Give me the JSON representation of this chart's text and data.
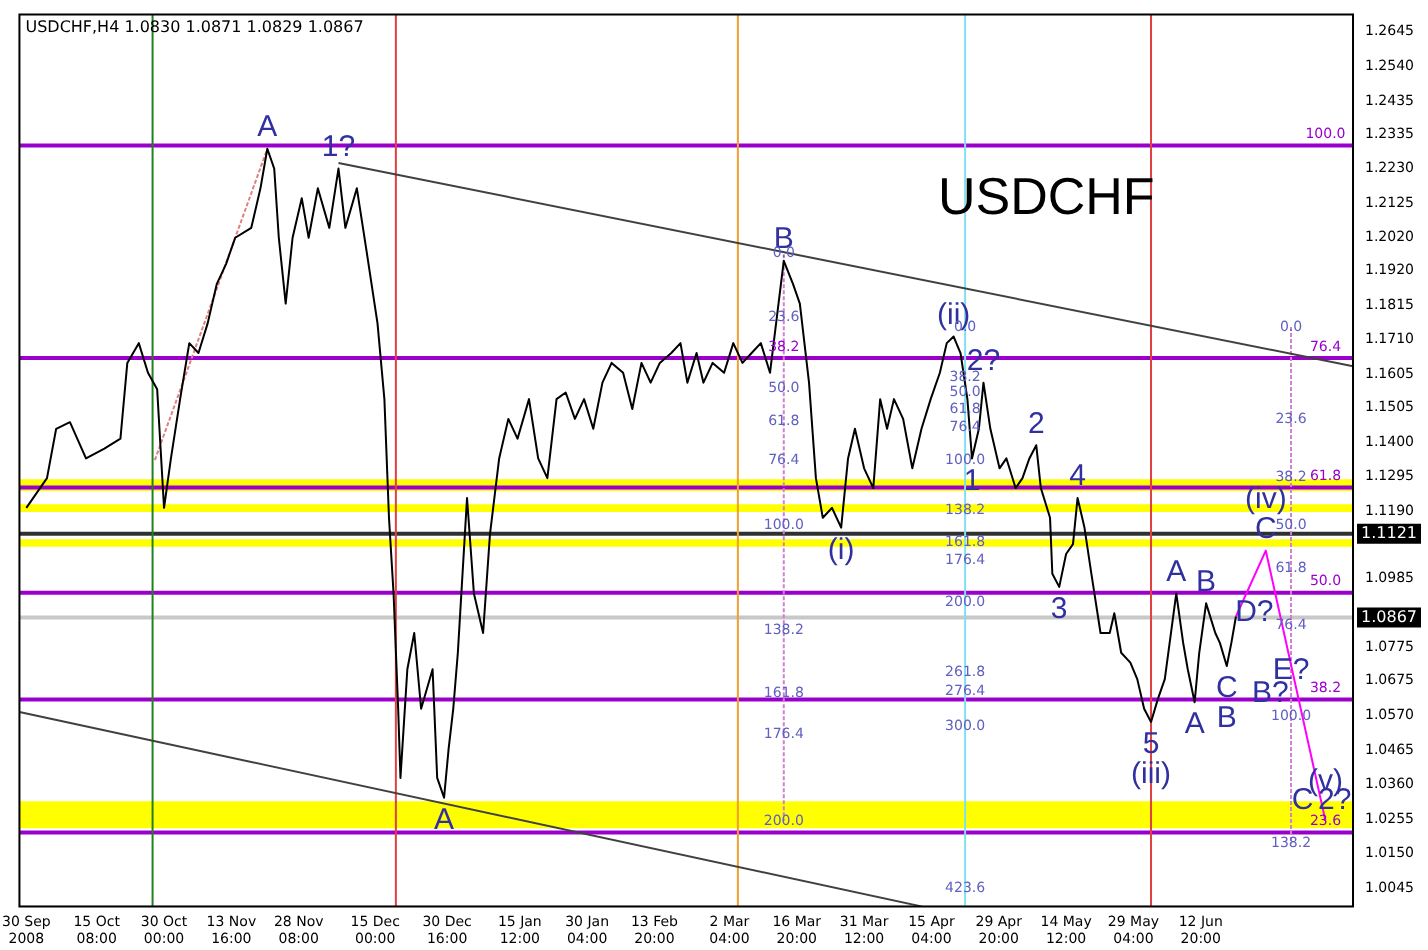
{
  "chart_data": {
    "type": "line",
    "title": "USDCHF,H4 1.0830 1.0871 1.0829 1.0867",
    "xlim": [
      "2008-09-28T12:00",
      "2009-07-16T00:00"
    ],
    "xticks": [
      {
        "value": "2008-09-30T00:00",
        "label": "30 Sep 2008"
      },
      {
        "value": "2008-10-15T08:00",
        "label": "15 Oct 08:00"
      },
      {
        "value": "2008-10-30T00:00",
        "label": "30 Oct 00:00"
      },
      {
        "value": "2008-11-13T16:00",
        "label": "13 Nov 16:00"
      },
      {
        "value": "2008-11-28T08:00",
        "label": "28 Nov 08:00"
      },
      {
        "value": "2008-12-15T00:00",
        "label": "15 Dec 00:00"
      },
      {
        "value": "2008-12-30T16:00",
        "label": "30 Dec 16:00"
      },
      {
        "value": "2009-01-15T12:00",
        "label": "15 Jan 12:00"
      },
      {
        "value": "2009-01-30T04:00",
        "label": "30 Jan 04:00"
      },
      {
        "value": "2009-02-13T20:00",
        "label": "13 Feb 20:00"
      },
      {
        "value": "2009-03-02T04:00",
        "label": "2 Mar 04:00"
      },
      {
        "value": "2009-03-16T20:00",
        "label": "16 Mar 20:00"
      },
      {
        "value": "2009-03-31T12:00",
        "label": "31 Mar 12:00"
      },
      {
        "value": "2009-04-15T04:00",
        "label": "15 Apr 04:00"
      },
      {
        "value": "2009-04-29T20:00",
        "label": "29 Apr 20:00"
      },
      {
        "value": "2009-05-14T12:00",
        "label": "14 May 12:00"
      },
      {
        "value": "2009-05-29T04:00",
        "label": "29 May 04:00"
      },
      {
        "value": "2009-06-12T20:00",
        "label": "12 Jun 20:00"
      }
    ],
    "ylim": [
      0.999,
      1.2698
    ],
    "yticks": [
      1.2645,
      {
        "value": 1.254,
        "label": "1.2540"
      },
      1.2435,
      1.2335,
      {
        "value": 1.223,
        "label": "1.2230"
      },
      1.2125,
      {
        "value": 1.202,
        "label": "1.2020"
      },
      {
        "value": 1.192,
        "label": "1.1920"
      },
      1.1815,
      {
        "value": 1.171,
        "label": "1.1710"
      },
      1.1605,
      1.1505,
      {
        "value": 1.14,
        "label": "1.1400"
      },
      1.1295,
      {
        "value": 1.119,
        "label": "1.1190"
      },
      1.0985,
      1.0775,
      1.0675,
      {
        "value": 1.057,
        "label": "1.0570"
      },
      1.0465,
      {
        "value": 1.036,
        "label": "1.0360"
      },
      1.0255,
      {
        "value": 1.015,
        "label": "1.0150"
      },
      1.0045
    ],
    "grid": false,
    "legend": false,
    "marker": "none",
    "bands": [
      {
        "axis": "y",
        "from": 1.1251,
        "to": 1.1287,
        "color": "#ffff00"
      },
      {
        "axis": "y",
        "from": 1.1187,
        "to": 1.1211,
        "color": "#ffff00"
      },
      {
        "axis": "y",
        "from": 1.1082,
        "to": 1.1105,
        "color": "#ffff00"
      },
      {
        "axis": "y",
        "from": 1.0227,
        "to": 1.0309,
        "color": "#ffff00"
      }
    ],
    "ref_lines": [
      {
        "axis": "y",
        "value": 1.23,
        "color": "#9900cc"
      },
      {
        "axis": "y",
        "value": 1.1655,
        "color": "#9900cc"
      },
      {
        "axis": "y",
        "value": 1.1262,
        "color": "#9900cc"
      },
      {
        "axis": "y",
        "value": 1.0942,
        "color": "#9900cc"
      },
      {
        "axis": "y",
        "value": 1.0618,
        "color": "#9900cc"
      },
      {
        "axis": "y",
        "value": 1.0214,
        "color": "#9900cc"
      },
      {
        "axis": "y",
        "value": 1.1121,
        "label": "1.1121",
        "color": "#303030"
      },
      {
        "axis": "y",
        "value": 1.0867,
        "label": "1.0867",
        "color": "#c8c8c8"
      },
      {
        "axis": "x",
        "value": "2008-10-27T12:00",
        "color": "#208020"
      },
      {
        "axis": "x",
        "value": "2008-12-19T12:00",
        "color": "#e04040"
      },
      {
        "axis": "x",
        "value": "2009-03-04T00:00",
        "color": "#f0a030"
      },
      {
        "axis": "x",
        "value": "2009-04-22T12:00",
        "color": "#80e0f0"
      },
      {
        "axis": "x",
        "value": "2009-06-02T00:00",
        "color": "#e04040"
      }
    ],
    "series": [
      {
        "color": "#000000",
        "x": [
          "2008-09-30T00:00",
          "2008-10-04T12:00",
          "2008-10-06T12:00",
          "2008-10-09T12:00",
          "2008-10-13T00:00",
          "2008-10-17T00:00",
          "2008-10-20T12:00",
          "2008-10-22T00:00",
          "2008-10-24T12:00",
          "2008-10-26T12:00",
          "2008-10-28T12:00",
          "2008-10-30T00:00",
          "2008-10-31T12:00",
          "2008-11-02T12:00",
          "2008-11-04T12:00",
          "2008-11-06T12:00",
          "2008-11-08T12:00",
          "2008-11-10T12:00",
          "2008-11-12T12:00",
          "2008-11-14T12:00",
          "2008-11-18T00:00",
          "2008-11-20T00:00",
          "2008-11-21T12:00",
          "2008-11-23T00:00",
          "2008-11-24T00:00",
          "2008-11-25T12:00",
          "2008-11-27T00:00",
          "2008-11-29T00:00",
          "2008-11-30T12:00",
          "2008-12-02T12:00",
          "2008-12-05T00:00",
          "2008-12-07T00:00",
          "2008-12-08T12:00",
          "2008-12-11T00:00",
          "2008-12-13T00:00",
          "2008-12-15T12:00",
          "2008-12-17T00:00",
          "2008-12-18T00:00",
          "2008-12-19T00:00",
          "2008-12-20T00:00",
          "2008-12-20T12:00",
          "2008-12-22T00:00",
          "2008-12-23T12:00",
          "2008-12-25T00:00",
          "2008-12-27T12:00",
          "2008-12-28T12:00",
          "2008-12-30T00:00",
          "2008-12-31T00:00",
          "2009-01-01T00:00",
          "2009-01-02T00:00",
          "2009-01-04T00:00",
          "2009-01-05T12:00",
          "2009-01-07T12:00",
          "2009-01-09T00:00",
          "2009-01-11T00:00",
          "2009-01-13T00:00",
          "2009-01-15T00:00",
          "2009-01-17T12:00",
          "2009-01-19T12:00",
          "2009-01-21T12:00",
          "2009-01-23T12:00",
          "2009-01-25T12:00",
          "2009-01-27T12:00",
          "2009-01-29T12:00",
          "2009-01-31T12:00",
          "2009-02-02T12:00",
          "2009-02-04T12:00",
          "2009-02-07T00:00",
          "2009-02-09T00:00",
          "2009-02-11T00:00",
          "2009-02-13T00:00",
          "2009-02-15T00:00",
          "2009-02-17T12:00",
          "2009-02-19T12:00",
          "2009-02-21T00:00",
          "2009-02-23T00:00",
          "2009-02-24T12:00",
          "2009-02-26T12:00",
          "2009-03-01T00:00",
          "2009-03-03T00:00",
          "2009-03-05T00:00",
          "2009-03-07T00:00",
          "2009-03-09T00:00",
          "2009-03-11T00:00",
          "2009-03-14T00:00",
          "2009-03-16T00:00",
          "2009-03-17T12:00",
          "2009-03-19T12:00",
          "2009-03-21T00:00",
          "2009-03-22T12:00",
          "2009-03-24T12:00",
          "2009-03-26T12:00",
          "2009-03-28T00:00",
          "2009-03-29T12:00",
          "2009-03-31T12:00",
          "2009-04-02T12:00",
          "2009-04-04T00:00",
          "2009-04-05T12:00",
          "2009-04-07T00:00",
          "2009-04-09T00:00",
          "2009-04-11T00:00",
          "2009-04-13T00:00",
          "2009-04-15T00:00",
          "2009-04-17T00:00",
          "2009-04-18T12:00",
          "2009-04-20T00:00",
          "2009-04-21T12:00",
          "2009-04-23T00:00",
          "2009-04-24T00:00",
          "2009-04-25T12:00",
          "2009-04-26T12:00",
          "2009-04-28T00:00",
          "2009-04-30T00:00",
          "2009-05-01T12:00",
          "2009-05-03T12:00",
          "2009-05-05T00:00",
          "2009-05-06T12:00",
          "2009-05-08T00:00",
          "2009-05-09T00:00",
          "2009-05-11T00:00",
          "2009-05-11T12:00",
          "2009-05-13T00:00",
          "2009-05-14T12:00",
          "2009-05-16T00:00",
          "2009-05-17T00:00",
          "2009-05-18T12:00",
          "2009-05-20T00:00",
          "2009-05-22T00:00",
          "2009-05-24T00:00",
          "2009-05-25T00:00",
          "2009-05-26T12:00",
          "2009-05-28T12:00",
          "2009-05-30T00:00",
          "2009-05-31T12:00",
          "2009-06-02T00:00",
          "2009-06-03T12:00",
          "2009-06-05T00:00",
          "2009-06-07T12:00",
          "2009-06-09T00:00",
          "2009-06-10T00:00",
          "2009-06-11T12:00",
          "2009-06-12T12:00",
          "2009-06-14T00:00",
          "2009-06-16T00:00",
          "2009-06-17T00:00",
          "2009-06-18T12:00",
          "2009-06-19T12:00",
          "2009-06-20T12:00"
        ],
        "values": [
          1.12,
          1.129,
          1.144,
          1.146,
          1.135,
          1.138,
          1.141,
          1.164,
          1.17,
          1.161,
          1.156,
          1.12,
          1.135,
          1.153,
          1.17,
          1.167,
          1.176,
          1.188,
          1.194,
          1.202,
          1.205,
          1.217,
          1.229,
          1.223,
          1.202,
          1.182,
          1.202,
          1.214,
          1.202,
          1.217,
          1.205,
          1.223,
          1.205,
          1.217,
          1.199,
          1.176,
          1.153,
          1.117,
          1.094,
          1.059,
          1.038,
          1.071,
          1.082,
          1.059,
          1.071,
          1.038,
          1.032,
          1.047,
          1.059,
          1.076,
          1.123,
          1.094,
          1.082,
          1.112,
          1.135,
          1.147,
          1.141,
          1.153,
          1.135,
          1.129,
          1.153,
          1.155,
          1.147,
          1.153,
          1.144,
          1.158,
          1.164,
          1.161,
          1.15,
          1.164,
          1.158,
          1.164,
          1.167,
          1.17,
          1.158,
          1.167,
          1.158,
          1.164,
          1.161,
          1.17,
          1.164,
          1.167,
          1.17,
          1.161,
          1.195,
          1.188,
          1.182,
          1.158,
          1.129,
          1.117,
          1.12,
          1.114,
          1.135,
          1.144,
          1.132,
          1.126,
          1.153,
          1.144,
          1.153,
          1.147,
          1.132,
          1.144,
          1.153,
          1.161,
          1.17,
          1.172,
          1.167,
          1.153,
          1.135,
          1.144,
          1.158,
          1.144,
          1.132,
          1.135,
          1.126,
          1.129,
          1.135,
          1.139,
          1.126,
          1.117,
          1.1,
          1.096,
          1.106,
          1.109,
          1.123,
          1.114,
          1.1,
          1.082,
          1.082,
          1.088,
          1.076,
          1.073,
          1.068,
          1.059,
          1.055,
          1.062,
          1.068,
          1.094,
          1.079,
          1.071,
          1.061,
          1.076,
          1.091,
          1.082,
          1.079,
          1.072,
          1.079,
          1.087
        ]
      },
      {
        "color": "#ff00ff",
        "x": [
          "2009-06-20T12:00",
          "2009-06-27T00:00",
          "2009-07-10T00:00"
        ],
        "values": [
          1.087,
          1.107,
          1.025
        ]
      },
      {
        "color": "#404040",
        "x": [
          "2008-12-07T00:00",
          "2009-07-16T00:00"
        ],
        "values": [
          1.2247,
          1.163
        ]
      },
      {
        "color": "#404040",
        "x": [
          "2008-09-28T12:00",
          "2009-04-13T00:00"
        ],
        "values": [
          1.058,
          0.999
        ]
      },
      {
        "color": "#e08080",
        "line_style": "dotted",
        "x": [
          "2008-10-28T00:00",
          "2008-11-21T12:00"
        ],
        "values": [
          1.1345,
          1.229
        ]
      },
      {
        "color": "#d080d0",
        "line_style": "dotted",
        "x": [
          "2009-03-14T00:00",
          "2009-03-14T00:00"
        ],
        "values": [
          1.197,
          1.0249
        ]
      },
      {
        "color": "#d080d0",
        "line_style": "dotted",
        "x": [
          "2009-07-02T12:00",
          "2009-07-02T12:00"
        ],
        "values": [
          1.1749,
          1.018
        ]
      }
    ],
    "annotations": [
      "USDCHF",
      {
        "text": "A",
        "x": "2008-11-21T12:00",
        "y": 1.229
      },
      {
        "text": "1?",
        "x": "2008-12-07T00:00",
        "y": 1.223
      },
      {
        "text": "B",
        "x": "2009-03-14T00:00",
        "y": 1.195
      },
      {
        "text": "A",
        "x": "2008-12-30T00:00",
        "y": 1.032
      },
      {
        "text": "(ii)",
        "x": "2009-04-20T00:00",
        "y": 1.172
      },
      {
        "text": "2?",
        "x": "2009-04-26T12:00",
        "y": 1.158
      },
      {
        "text": "1",
        "x": "2009-04-24T00:00",
        "y": 1.135
      },
      {
        "text": "2",
        "x": "2009-05-08T00:00",
        "y": 1.139
      },
      {
        "text": "3",
        "x": "2009-05-13T00:00",
        "y": 1.096
      },
      {
        "text": "4",
        "x": "2009-05-17T00:00",
        "y": 1.123
      },
      {
        "text": "5",
        "x": "2009-06-02T00:00",
        "y": 1.055
      },
      {
        "text": "(iii)",
        "x": "2009-06-02T00:00",
        "y": 1.055
      },
      {
        "text": "(i)",
        "x": "2009-03-26T12:00",
        "y": 1.114
      },
      {
        "text": "A",
        "x": "2009-06-07T12:00",
        "y": 1.094
      },
      {
        "text": "B",
        "x": "2009-06-14T00:00",
        "y": 1.091
      },
      {
        "text": "C",
        "x": "2009-06-18T12:00",
        "y": 1.072
      },
      {
        "text": "A",
        "x": "2009-06-11T12:00",
        "y": 1.061
      },
      {
        "text": "B",
        "x": "2009-06-18T12:00",
        "y": 1.072
      },
      {
        "text": "D?",
        "x": "2009-06-24T12:00",
        "y": 1.0883
      },
      {
        "text": "E?",
        "x": "2009-07-02T12:00",
        "y": 1.0707
      },
      {
        "text": "B?",
        "x": "2009-06-28T00:00",
        "y": 1.0637
      },
      {
        "text": "C",
        "x": "2009-06-27T00:00",
        "y": 1.107
      },
      {
        "text": "(iv)",
        "x": "2009-06-27T00:00",
        "y": 1.107
      },
      {
        "text": "(v)",
        "x": "2009-07-10T00:00",
        "y": 1.0367
      },
      {
        "text": "C",
        "x": "2009-07-05T00:00",
        "y": 1.031
      },
      {
        "text": "2?",
        "x": "2009-07-12T00:00",
        "y": 1.031
      },
      {
        "text": "100.0",
        "x": "2009-07-10T00:00",
        "y": 1.23
      },
      {
        "text": "76.4",
        "x": "2009-07-10T00:00",
        "y": 1.1655
      },
      {
        "text": "61.8",
        "x": "2009-07-10T00:00",
        "y": 1.1262
      },
      {
        "text": "50.0",
        "x": "2009-07-10T00:00",
        "y": 1.0942
      },
      {
        "text": "38.2",
        "x": "2009-07-10T00:00",
        "y": 1.0618
      },
      {
        "text": "23.6",
        "x": "2009-07-10T00:00",
        "y": 1.0214
      },
      {
        "text": "0.0",
        "x": "2009-03-14T00:00",
        "y": 1.1971
      },
      {
        "text": "23.6",
        "x": "2009-03-14T00:00",
        "y": 1.1778
      },
      {
        "text": "38.2",
        "x": "2009-03-14T00:00",
        "y": 1.1655
      },
      {
        "text": "50.0",
        "x": "2009-03-14T00:00",
        "y": 1.1562
      },
      {
        "text": "61.8",
        "x": "2009-03-14T00:00",
        "y": 1.1462
      },
      {
        "text": "76.4",
        "x": "2009-03-14T00:00",
        "y": 1.1345
      },
      {
        "text": "100.0",
        "x": "2009-03-14T00:00",
        "y": 1.1146
      },
      {
        "text": "138.2",
        "x": "2009-03-14T00:00",
        "y": 1.0829
      },
      {
        "text": "161.8",
        "x": "2009-03-14T00:00",
        "y": 1.0636
      },
      {
        "text": "176.4",
        "x": "2009-03-14T00:00",
        "y": 1.0512
      },
      {
        "text": "200.0",
        "x": "2009-03-14T00:00",
        "y": 1.0249
      },
      {
        "text": "0.0",
        "x": "2009-04-22T12:00",
        "y": 1.1749
      },
      {
        "text": "38.2",
        "x": "2009-04-22T12:00",
        "y": 1.1597
      },
      {
        "text": "50.0",
        "x": "2009-04-22T12:00",
        "y": 1.155
      },
      {
        "text": "61.8",
        "x": "2009-04-22T12:00",
        "y": 1.1498
      },
      {
        "text": "76.4",
        "x": "2009-04-22T12:00",
        "y": 1.1445
      },
      {
        "text": "100.0",
        "x": "2009-04-22T12:00",
        "y": 1.1345
      },
      {
        "text": "138.2",
        "x": "2009-04-22T12:00",
        "y": 1.1193
      },
      {
        "text": "161.8",
        "x": "2009-04-22T12:00",
        "y": 1.1094
      },
      {
        "text": "176.4",
        "x": "2009-04-22T12:00",
        "y": 1.1041
      },
      {
        "text": "200.0",
        "x": "2009-04-22T12:00",
        "y": 1.0912
      },
      {
        "text": "261.8",
        "x": "2009-04-22T12:00",
        "y": 1.0701
      },
      {
        "text": "276.4",
        "x": "2009-04-22T12:00",
        "y": 1.0643
      },
      {
        "text": "300.0",
        "x": "2009-04-22T12:00",
        "y": 1.0537
      },
      {
        "text": "423.6",
        "x": "2009-04-22T12:00",
        "y": 1.0046
      },
      {
        "text": "0.0",
        "x": "2009-07-02T12:00",
        "y": 1.1749
      },
      {
        "text": "23.6",
        "x": "2009-07-02T12:00",
        "y": 1.1468
      },
      {
        "text": "38.2",
        "x": "2009-07-02T12:00",
        "y": 1.1293
      },
      {
        "text": "50.0",
        "x": "2009-07-02T12:00",
        "y": 1.1146
      },
      {
        "text": "61.8",
        "x": "2009-07-02T12:00",
        "y": 1.1017
      },
      {
        "text": "76.4",
        "x": "2009-07-02T12:00",
        "y": 1.0842
      },
      {
        "text": "100.0",
        "x": "2009-07-02T12:00",
        "y": 1.0567
      },
      {
        "text": "138.2",
        "x": "2009-07-02T12:00",
        "y": 1.018
      }
    ]
  }
}
